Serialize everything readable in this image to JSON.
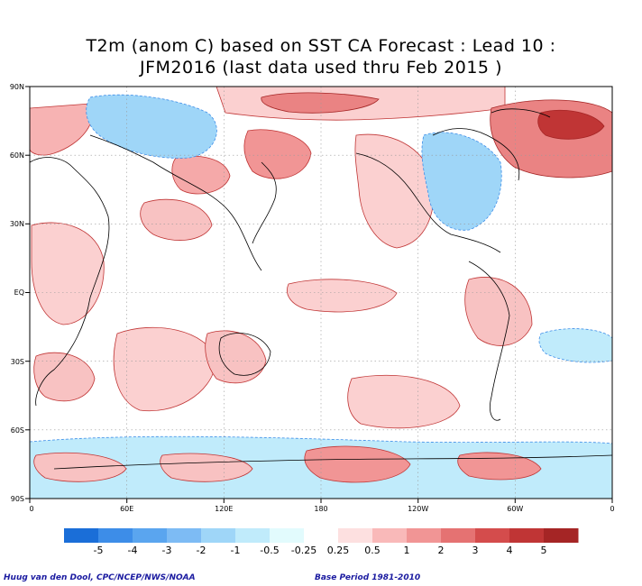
{
  "title_line1": "T2m (anom C) based on SST CA Forecast : Lead 10 :",
  "title_line2": "JFM2016 (last data used thru Feb 2015 )",
  "lat_labels": [
    "90N",
    "60N",
    "30N",
    "EQ",
    "30S",
    "60S",
    "90S"
  ],
  "lon_labels": [
    "0",
    "60E",
    "120E",
    "180",
    "120W",
    "60W",
    "0"
  ],
  "legend": {
    "labels": [
      "-5",
      "-4",
      "-3",
      "-2",
      "-1",
      "-0.5",
      "-0.25",
      "0.25",
      "0.5",
      "1",
      "2",
      "3",
      "4",
      "5"
    ],
    "colors": [
      "#1a6ed8",
      "#3d8de8",
      "#5aa5ef",
      "#7dbbf4",
      "#9fd6f8",
      "#c0ebfb",
      "#e2fbfd",
      "#ffffff",
      "#fde0e0",
      "#f9b9b9",
      "#f19595",
      "#e57272",
      "#d44c4c",
      "#c03535",
      "#a52525"
    ]
  },
  "credit": "Huug van den Dool, CPC/NCEP/NWS/NOAA",
  "base_period": "Base Period 1981-2010"
}
